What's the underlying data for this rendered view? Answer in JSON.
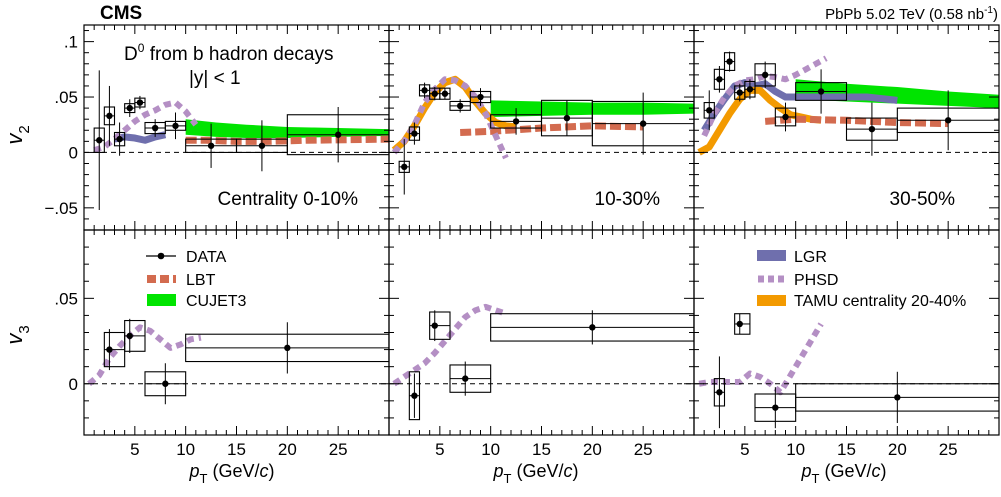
{
  "header": {
    "experiment": "CMS",
    "system": "PbPb 5.02 TeV (0.58 nb",
    "lumi_exp": "-1",
    "lumi_close": ")"
  },
  "annotations": {
    "particle": "D",
    "particle_sup": "0",
    "process": " from b hadron decays",
    "rapidity": "|y| < 1"
  },
  "axis_titles": {
    "v2": "v",
    "v2_sub": "2",
    "v3": "v",
    "v3_sub": "3",
    "pt": "p",
    "pt_sub": "T",
    "pt_units_open": " (GeV/",
    "pt_units_c": "c",
    "pt_units_close": ")"
  },
  "panels": [
    "Centrality 0-10%",
    "10-30%",
    "30-50%"
  ],
  "legend": {
    "data": "DATA",
    "lbt": "LBT",
    "cujet3": "CUJET3",
    "lgr": "LGR",
    "phsd": "PHSD",
    "tamu": "TAMU centrality 20-40%"
  },
  "colors": {
    "lbt": "#d36b4f",
    "cujet3": "#00e400",
    "lgr": "#6f6fad",
    "phsd": "#b48fc4",
    "tamu": "#f39a00"
  },
  "chart_data": {
    "type": "scatter",
    "x_label": "p_T (GeV/c)",
    "x_range": [
      0,
      30
    ],
    "x_ticks": [
      5,
      10,
      15,
      20,
      25
    ],
    "v2_range": [
      -0.07,
      0.115
    ],
    "v2_ticks": [
      -0.05,
      0,
      0.05,
      0.1
    ],
    "v3_range": [
      -0.03,
      0.09
    ],
    "v3_ticks": [
      0,
      0.05
    ],
    "v2": [
      {
        "panel": "Centrality 0-10%",
        "data": [
          {
            "x": 1.5,
            "y": 0.011,
            "ystat": 0.063,
            "xlo": 1,
            "xhi": 2,
            "ysys": 0.011
          },
          {
            "x": 2.5,
            "y": 0.033,
            "ystat": 0.027,
            "xlo": 2,
            "xhi": 3,
            "ysys": 0.008
          },
          {
            "x": 3.5,
            "y": 0.012,
            "ystat": 0.015,
            "xlo": 3,
            "xhi": 4,
            "ysys": 0.006
          },
          {
            "x": 4.5,
            "y": 0.04,
            "ystat": 0.008,
            "xlo": 4,
            "xhi": 5,
            "ysys": 0.004
          },
          {
            "x": 5.5,
            "y": 0.045,
            "ystat": 0.006,
            "xlo": 5,
            "xhi": 6,
            "ysys": 0.004
          },
          {
            "x": 7,
            "y": 0.022,
            "ystat": 0.008,
            "xlo": 6,
            "xhi": 8,
            "ysys": 0.005
          },
          {
            "x": 9,
            "y": 0.024,
            "ystat": 0.012,
            "xlo": 8,
            "xhi": 10,
            "ysys": 0.004
          },
          {
            "x": 12.5,
            "y": 0.006,
            "ystat": 0.02,
            "xlo": 10,
            "xhi": 15,
            "ysys": 0.006
          },
          {
            "x": 17.5,
            "y": 0.006,
            "ystat": 0.023,
            "xlo": 15,
            "xhi": 20,
            "ysys": 0.006
          },
          {
            "x": 25,
            "y": 0.016,
            "ystat": 0.025,
            "xlo": 20,
            "xhi": 30,
            "ysys": 0.018
          }
        ],
        "lbt": [
          [
            10,
            0.011
          ],
          [
            12,
            0.011
          ],
          [
            15,
            0.01
          ],
          [
            18,
            0.01
          ],
          [
            22,
            0.011
          ],
          [
            30,
            0.012
          ]
        ],
        "cujet3": {
          "x": [
            10,
            13,
            16,
            20,
            25,
            30
          ],
          "lo": [
            0.016,
            0.014,
            0.013,
            0.013,
            0.014,
            0.015
          ],
          "hi": [
            0.03,
            0.027,
            0.025,
            0.023,
            0.022,
            0.021
          ]
        },
        "lgr": [
          [
            3,
            0.012
          ],
          [
            4,
            0.014
          ],
          [
            5,
            0.013
          ],
          [
            6,
            0.011
          ],
          [
            7,
            0.014
          ],
          [
            8,
            0.016
          ]
        ],
        "phsd": [
          [
            1,
            0.002
          ],
          [
            2,
            0.005
          ],
          [
            3,
            0.012
          ],
          [
            4,
            0.02
          ],
          [
            5,
            0.028
          ],
          [
            6,
            0.034
          ],
          [
            7,
            0.038
          ],
          [
            8,
            0.043
          ],
          [
            9,
            0.045
          ],
          [
            10,
            0.037
          ],
          [
            11,
            0.025
          ]
        ]
      },
      {
        "panel": "10-30%",
        "data": [
          {
            "x": 1.5,
            "y": -0.013,
            "ystat": 0.025,
            "xlo": 1,
            "xhi": 2,
            "ysys": 0.005
          },
          {
            "x": 2.5,
            "y": 0.017,
            "ystat": 0.01,
            "xlo": 2,
            "xhi": 3,
            "ysys": 0.006
          },
          {
            "x": 3.5,
            "y": 0.056,
            "ystat": 0.007,
            "xlo": 3,
            "xhi": 4,
            "ysys": 0.005
          },
          {
            "x": 4.5,
            "y": 0.053,
            "ystat": 0.006,
            "xlo": 4,
            "xhi": 5,
            "ysys": 0.005
          },
          {
            "x": 5.5,
            "y": 0.053,
            "ystat": 0.005,
            "xlo": 5,
            "xhi": 6,
            "ysys": 0.005
          },
          {
            "x": 7,
            "y": 0.042,
            "ystat": 0.006,
            "xlo": 6,
            "xhi": 8,
            "ysys": 0.004
          },
          {
            "x": 9,
            "y": 0.05,
            "ystat": 0.008,
            "xlo": 8,
            "xhi": 10,
            "ysys": 0.005
          },
          {
            "x": 12.5,
            "y": 0.028,
            "ystat": 0.012,
            "xlo": 10,
            "xhi": 15,
            "ysys": 0.006
          },
          {
            "x": 17.5,
            "y": 0.031,
            "ystat": 0.016,
            "xlo": 15,
            "xhi": 20,
            "ysys": 0.016
          },
          {
            "x": 25,
            "y": 0.026,
            "ystat": 0.028,
            "xlo": 20,
            "xhi": 30,
            "ysys": 0.02
          }
        ],
        "lbt": [
          [
            7,
            0.018
          ],
          [
            10,
            0.019
          ],
          [
            15,
            0.022
          ],
          [
            20,
            0.024
          ],
          [
            25,
            0.023
          ]
        ],
        "cujet3": {
          "x": [
            10,
            15,
            20,
            25,
            30
          ],
          "lo": [
            0.032,
            0.033,
            0.034,
            0.034,
            0.035
          ],
          "hi": [
            0.047,
            0.046,
            0.045,
            0.045,
            0.044
          ]
        },
        "tamu": [
          [
            0.5,
            0.002
          ],
          [
            1.5,
            0.01
          ],
          [
            2.5,
            0.024
          ],
          [
            3.5,
            0.04
          ],
          [
            4.5,
            0.054
          ],
          [
            5.5,
            0.063
          ],
          [
            6.5,
            0.066
          ],
          [
            7.5,
            0.059
          ],
          [
            8.5,
            0.046
          ],
          [
            9.5,
            0.035
          ],
          [
            10.5,
            0.027
          ],
          [
            11.5,
            0.024
          ],
          [
            12.5,
            0.023
          ]
        ],
        "phsd": [
          [
            0.5,
            0
          ],
          [
            1.5,
            0.01
          ],
          [
            2.5,
            0.025
          ],
          [
            3.5,
            0.045
          ],
          [
            4.5,
            0.057
          ],
          [
            5.5,
            0.066
          ],
          [
            6.5,
            0.065
          ],
          [
            7.5,
            0.06
          ],
          [
            8.5,
            0.05
          ],
          [
            9.5,
            0.035
          ],
          [
            10.5,
            0.015
          ],
          [
            11.5,
            -0.005
          ]
        ]
      },
      {
        "panel": "30-50%",
        "data": [
          {
            "x": 1.5,
            "y": 0.038,
            "ystat": 0.018,
            "xlo": 1,
            "xhi": 2,
            "ysys": 0.007
          },
          {
            "x": 2.5,
            "y": 0.066,
            "ystat": 0.012,
            "xlo": 2,
            "xhi": 3,
            "ysys": 0.009
          },
          {
            "x": 3.5,
            "y": 0.082,
            "ystat": 0.009,
            "xlo": 3,
            "xhi": 4,
            "ysys": 0.008
          },
          {
            "x": 4.5,
            "y": 0.054,
            "ystat": 0.008,
            "xlo": 4,
            "xhi": 5,
            "ysys": 0.006
          },
          {
            "x": 5.5,
            "y": 0.057,
            "ystat": 0.009,
            "xlo": 5,
            "xhi": 6,
            "ysys": 0.007
          },
          {
            "x": 7,
            "y": 0.07,
            "ystat": 0.012,
            "xlo": 6,
            "xhi": 8,
            "ysys": 0.01
          },
          {
            "x": 9,
            "y": 0.032,
            "ystat": 0.013,
            "xlo": 8,
            "xhi": 10,
            "ysys": 0.008
          },
          {
            "x": 12.5,
            "y": 0.055,
            "ystat": 0.02,
            "xlo": 10,
            "xhi": 15,
            "ysys": 0.008
          },
          {
            "x": 17.5,
            "y": 0.021,
            "ystat": 0.024,
            "xlo": 15,
            "xhi": 20,
            "ysys": 0.01
          },
          {
            "x": 25,
            "y": 0.029,
            "ystat": 0.027,
            "xlo": 20,
            "xhi": 30,
            "ysys": 0.011
          }
        ],
        "lbt": [
          [
            7,
            0.028
          ],
          [
            10,
            0.03
          ],
          [
            15,
            0.029
          ],
          [
            20,
            0.027
          ],
          [
            25,
            0.026
          ]
        ],
        "cujet3": {
          "x": [
            10,
            15,
            20,
            25,
            30
          ],
          "lo": [
            0.048,
            0.046,
            0.044,
            0.042,
            0.04
          ],
          "hi": [
            0.066,
            0.062,
            0.059,
            0.055,
            0.052
          ]
        },
        "lgr": [
          [
            1,
            0.02
          ],
          [
            2,
            0.035
          ],
          [
            3,
            0.048
          ],
          [
            4,
            0.06
          ],
          [
            5,
            0.063
          ],
          [
            6,
            0.06
          ],
          [
            7,
            0.062
          ],
          [
            8,
            0.055
          ],
          [
            9,
            0.05
          ],
          [
            10,
            0.05
          ],
          [
            12,
            0.05
          ],
          [
            15,
            0.05
          ],
          [
            17,
            0.05
          ],
          [
            20,
            0.047
          ]
        ],
        "tamu": [
          [
            0.5,
            0
          ],
          [
            1.5,
            0.005
          ],
          [
            2.5,
            0.02
          ],
          [
            3.5,
            0.035
          ],
          [
            4.5,
            0.048
          ],
          [
            5.5,
            0.056
          ],
          [
            6.5,
            0.056
          ],
          [
            7.5,
            0.047
          ],
          [
            8.5,
            0.04
          ],
          [
            9.5,
            0.034
          ],
          [
            10.5,
            0.032
          ],
          [
            11.5,
            0.03
          ],
          [
            12.5,
            0.029
          ]
        ],
        "phsd": [
          [
            1,
            0.015
          ],
          [
            2,
            0.035
          ],
          [
            3,
            0.05
          ],
          [
            4,
            0.06
          ],
          [
            5,
            0.065
          ],
          [
            6,
            0.066
          ],
          [
            7,
            0.069
          ],
          [
            8,
            0.068
          ],
          [
            9,
            0.066
          ],
          [
            10,
            0.07
          ],
          [
            11,
            0.075
          ],
          [
            12,
            0.08
          ],
          [
            13,
            0.085
          ]
        ]
      }
    ],
    "v3": [
      {
        "panel": "Centrality 0-10%",
        "data": [
          {
            "x": 2.5,
            "y": 0.02,
            "ystat": 0.012,
            "xlo": 2,
            "xhi": 4,
            "ysys": 0.01
          },
          {
            "x": 4.5,
            "y": 0.028,
            "ystat": 0.01,
            "xlo": 4,
            "xhi": 6,
            "ysys": 0.009
          },
          {
            "x": 8,
            "y": 0,
            "ystat": 0.012,
            "xlo": 6,
            "xhi": 10,
            "ysys": 0.007
          },
          {
            "x": 20,
            "y": 0.021,
            "ystat": 0.015,
            "xlo": 10,
            "xhi": 30,
            "ysys": 0.008
          }
        ],
        "phsd": [
          [
            0.5,
            0
          ],
          [
            1.5,
            0.005
          ],
          [
            2.5,
            0.015
          ],
          [
            3.5,
            0.022
          ],
          [
            4.5,
            0.028
          ],
          [
            5.5,
            0.033
          ],
          [
            6.5,
            0.031
          ],
          [
            7.5,
            0.026
          ],
          [
            8.5,
            0.021
          ],
          [
            9.5,
            0.023
          ],
          [
            10.5,
            0.026
          ],
          [
            11.5,
            0.027
          ]
        ]
      },
      {
        "panel": "10-30%",
        "data": [
          {
            "x": 2.5,
            "y": -0.007,
            "ystat": 0.013,
            "xlo": 2,
            "xhi": 3,
            "ysys": 0.014
          },
          {
            "x": 4.5,
            "y": 0.034,
            "ystat": 0.009,
            "xlo": 4,
            "xhi": 6,
            "ysys": 0.008
          },
          {
            "x": 7.5,
            "y": 0.003,
            "ystat": 0.01,
            "xlo": 6,
            "xhi": 10,
            "ysys": 0.008
          },
          {
            "x": 20,
            "y": 0.033,
            "ystat": 0.01,
            "xlo": 10,
            "xhi": 30,
            "ysys": 0.008
          }
        ],
        "phsd": [
          [
            0.5,
            0
          ],
          [
            1.5,
            0.004
          ],
          [
            2.5,
            0.008
          ],
          [
            3.5,
            0.012
          ],
          [
            4.5,
            0.018
          ],
          [
            5.5,
            0.025
          ],
          [
            6.5,
            0.032
          ],
          [
            7.5,
            0.039
          ],
          [
            8.5,
            0.043
          ],
          [
            9.5,
            0.045
          ],
          [
            10.5,
            0.043
          ],
          [
            11.5,
            0.041
          ]
        ]
      },
      {
        "panel": "30-50%",
        "data": [
          {
            "x": 2.5,
            "y": -0.005,
            "ystat": 0.021,
            "xlo": 2,
            "xhi": 3,
            "ysys": 0.008
          },
          {
            "x": 4.5,
            "y": 0.035,
            "ystat": 0.006,
            "xlo": 4,
            "xhi": 5.5,
            "ysys": 0.006
          },
          {
            "x": 8,
            "y": -0.014,
            "ystat": 0.012,
            "xlo": 6,
            "xhi": 10,
            "ysys": 0.008
          },
          {
            "x": 20,
            "y": -0.008,
            "ystat": 0.015,
            "xlo": 10,
            "xhi": 30,
            "ysys": 0.008
          }
        ],
        "phsd": [
          [
            0.5,
            0
          ],
          [
            1.5,
            0.001
          ],
          [
            2.5,
            0.001
          ],
          [
            3.5,
            0.001
          ],
          [
            4.5,
            0.001
          ],
          [
            5.5,
            0.006
          ],
          [
            6.5,
            0.004
          ],
          [
            7.5,
            0
          ],
          [
            8.5,
            -0.005
          ],
          [
            9.5,
            0.005
          ],
          [
            10.5,
            0.015
          ],
          [
            11.5,
            0.025
          ],
          [
            12.5,
            0.035
          ]
        ]
      }
    ]
  }
}
